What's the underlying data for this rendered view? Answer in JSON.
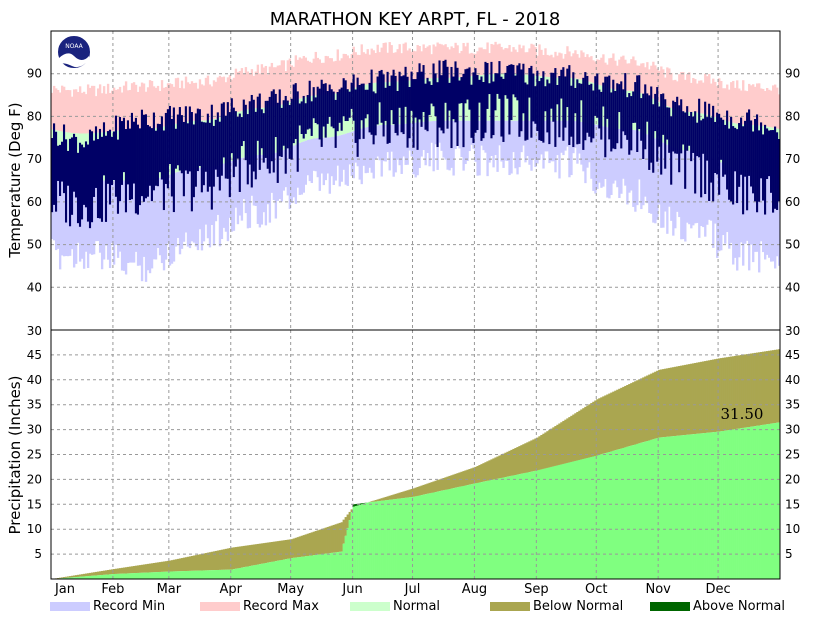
{
  "title": "MARATHON KEY ARPT, FL - 2018",
  "colors": {
    "record_min": "#ccccff",
    "record_max": "#ffcccc",
    "normal": "#ccffcc",
    "observed_temp": "#000066",
    "precip_observed": "#80ff80",
    "below_normal": "#aaa650",
    "above_normal": "#006600",
    "grid": "#999999"
  },
  "chart_data": [
    {
      "type": "area",
      "name": "temperature",
      "ylabel": "Temperature (Deg F)",
      "ylim": [
        30,
        100
      ],
      "yticks": [
        40,
        50,
        60,
        70,
        80,
        90
      ],
      "months": [
        "Jan",
        "Feb",
        "Mar",
        "Apr",
        "May",
        "Jun",
        "Jul",
        "Aug",
        "Sep",
        "Oct",
        "Nov",
        "Dec"
      ],
      "grid": true,
      "series": [
        {
          "name": "Record Min",
          "values": [
            52,
            49,
            56,
            62,
            68,
            73,
            74,
            74,
            73,
            66,
            58,
            51
          ]
        },
        {
          "name": "Record Max",
          "values": [
            86,
            87,
            88,
            91,
            94,
            96,
            96,
            96,
            95,
            93,
            89,
            87
          ]
        },
        {
          "name": "Normal",
          "low": [
            65,
            65,
            68,
            71,
            75,
            78,
            79,
            79,
            79,
            77,
            72,
            67
          ],
          "high": [
            76,
            77,
            79,
            82,
            85,
            88,
            89,
            90,
            89,
            86,
            81,
            78
          ]
        },
        {
          "low": [
            60,
            63,
            64,
            70,
            75,
            78,
            79,
            80,
            79,
            76,
            68,
            62
          ],
          "high": [
            74,
            79,
            80,
            83,
            86,
            88,
            90,
            90,
            89,
            87,
            81,
            79
          ]
        }
      ]
    },
    {
      "type": "area",
      "name": "precipitation",
      "ylabel": "Precipitation (Inches)",
      "ylim": [
        0,
        50
      ],
      "yticks": [
        5,
        10,
        15,
        20,
        25,
        30,
        35,
        40,
        45
      ],
      "months": [
        "Jan",
        "Feb",
        "Mar",
        "Apr",
        "May",
        "Jun",
        "Jul",
        "Aug",
        "Sep",
        "Oct",
        "Nov",
        "Dec"
      ],
      "grid": true,
      "x": [
        0,
        31,
        59,
        90,
        120,
        145,
        151,
        181,
        212,
        243,
        273,
        304,
        334,
        365
      ],
      "series": [
        {
          "name": "Normal cumulative",
          "values": [
            0,
            2.0,
            3.7,
            6.3,
            8.0,
            11.4,
            14.5,
            18.2,
            22.5,
            28.4,
            36.1,
            42.0,
            44.3,
            46.2
          ]
        },
        {
          "name": "Observed cumulative",
          "values": [
            0,
            1.0,
            1.5,
            1.9,
            4.2,
            5.5,
            15.0,
            16.5,
            19.2,
            21.8,
            24.8,
            28.4,
            29.6,
            31.5
          ]
        }
      ],
      "annotations": [
        "31.50"
      ]
    }
  ],
  "legend": [
    {
      "label": "Record Min",
      "color": "#ccccff"
    },
    {
      "label": "Record Max",
      "color": "#ffcccc"
    },
    {
      "label": "Normal",
      "color": "#ccffcc"
    },
    {
      "label": "Below Normal",
      "color": "#aaa650"
    },
    {
      "label": "Above Normal",
      "color": "#006600"
    }
  ],
  "logo_text": "NOAA"
}
